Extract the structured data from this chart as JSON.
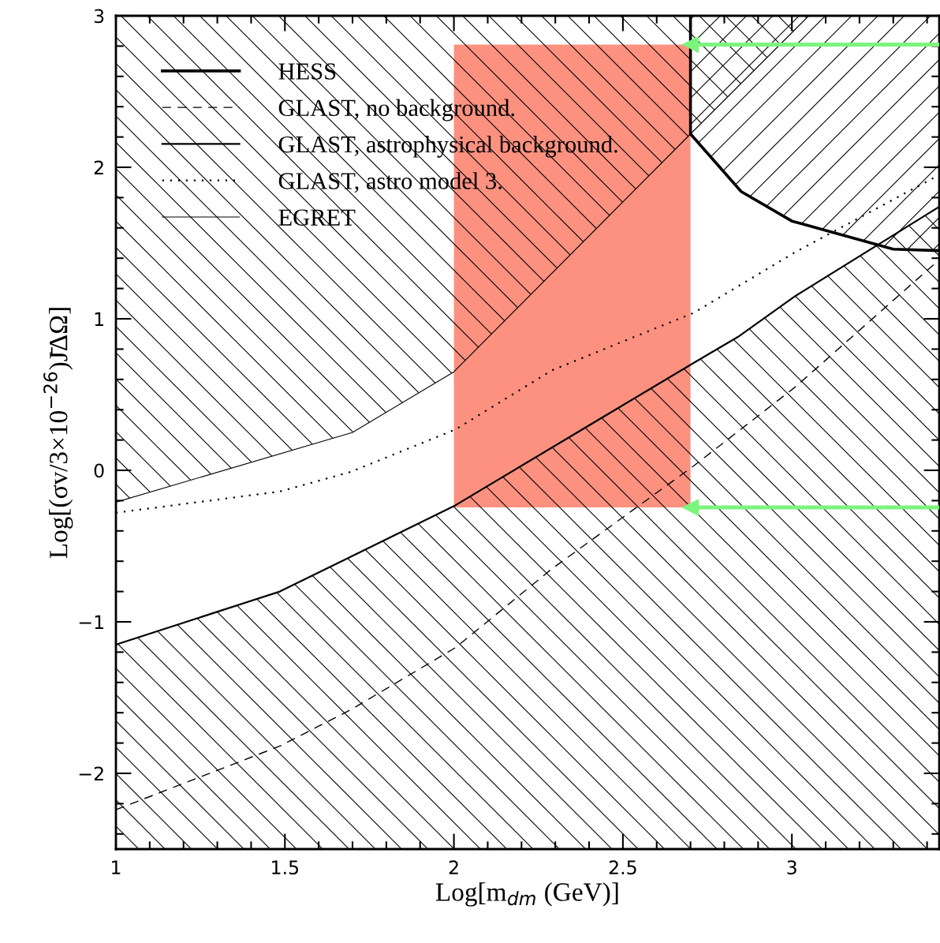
{
  "chart_data": {
    "type": "line",
    "xlabel": "Log[m$_{dm}$ (GeV)]",
    "ylabel": "Log[(σv/3×10$^{−26}$)J̄ΔΩ]",
    "xlim": [
      1,
      3.436
    ],
    "ylim": [
      -2.5,
      3
    ],
    "xticks": [
      1,
      {
        "value": 1.1,
        "label": null
      },
      {
        "value": 1.2,
        "label": null
      },
      {
        "value": 1.3,
        "label": null
      },
      {
        "value": 1.4,
        "label": null
      },
      1.5,
      {
        "value": 1.6,
        "label": null
      },
      {
        "value": 1.7,
        "label": null
      },
      {
        "value": 1.8,
        "label": null
      },
      {
        "value": 1.9,
        "label": null
      },
      2,
      {
        "value": 2.1,
        "label": null
      },
      {
        "value": 2.2,
        "label": null
      },
      {
        "value": 2.3,
        "label": null
      },
      {
        "value": 2.4,
        "label": null
      },
      2.5,
      {
        "value": 2.6,
        "label": null
      },
      {
        "value": 2.7,
        "label": null
      },
      {
        "value": 2.8,
        "label": null
      },
      {
        "value": 2.9,
        "label": null
      },
      3,
      {
        "value": 3.1,
        "label": null
      },
      {
        "value": 3.2,
        "label": null
      },
      {
        "value": 3.3,
        "label": null
      },
      {
        "value": 3.4,
        "label": null
      }
    ],
    "yticks": [
      {
        "value": -2.4,
        "label": null
      },
      {
        "value": -2.2,
        "label": null
      },
      {
        "value": -2,
        "label": "−2"
      },
      {
        "value": -1.8,
        "label": null
      },
      {
        "value": -1.6,
        "label": null
      },
      {
        "value": -1.4,
        "label": null
      },
      {
        "value": -1.2,
        "label": null
      },
      {
        "value": -1,
        "label": "−1"
      },
      {
        "value": -0.8,
        "label": null
      },
      {
        "value": -0.6,
        "label": null
      },
      {
        "value": -0.4,
        "label": null
      },
      {
        "value": -0.2,
        "label": null
      },
      0,
      {
        "value": 0.2,
        "label": null
      },
      {
        "value": 0.4,
        "label": null
      },
      {
        "value": 0.6,
        "label": null
      },
      {
        "value": 0.8,
        "label": null
      },
      1,
      {
        "value": 1.2,
        "label": null
      },
      {
        "value": 1.4,
        "label": null
      },
      {
        "value": 1.6,
        "label": null
      },
      {
        "value": 1.8,
        "label": null
      },
      2,
      {
        "value": 2.2,
        "label": null
      },
      {
        "value": 2.4,
        "label": null
      },
      {
        "value": 2.6,
        "label": null
      },
      {
        "value": 2.8,
        "label": null
      },
      3
    ],
    "grid": false,
    "legend": "top left",
    "series": [
      {
        "name": "HESS",
        "color": "#000000",
        "line_style": "solid",
        "x": [
          2.7,
          2.7,
          2.85,
          3.0,
          3.3,
          3.436
        ],
        "values": [
          3,
          2.22,
          1.84,
          1.645,
          1.46,
          1.45
        ],
        "lower": [
          3,
          2.22,
          1.84,
          1.645,
          1.46,
          1.45
        ],
        "upper": [
          3,
          3,
          3,
          3,
          3,
          3
        ]
      },
      {
        "name": "GLAST, no background.",
        "color": "#000000",
        "line_style": "dashed",
        "x": [
          1,
          1.485,
          1.695,
          2.005,
          2.29,
          2.71,
          3.01,
          3.436
        ],
        "values": [
          -2.24,
          -1.82,
          -1.58,
          -1.17,
          -0.65,
          0.03,
          0.55,
          1.39
        ]
      },
      {
        "name": "GLAST, astrophysical background.",
        "color": "#000000",
        "line_style": "solid",
        "x": [
          1,
          1.485,
          1.695,
          2.005,
          2.71,
          2.84,
          3.01,
          3.436
        ],
        "values": [
          -1.15,
          -0.8,
          -0.57,
          -0.23,
          0.71,
          0.88,
          1.15,
          1.74
        ],
        "lower": [
          -2.5,
          -2.5,
          -2.5,
          -2.5,
          -2.5,
          -2.5,
          -2.5,
          -2.5
        ],
        "upper": [
          -1.15,
          -0.8,
          -0.57,
          -0.23,
          0.71,
          0.88,
          1.15,
          1.74
        ]
      },
      {
        "name": "GLAST, astro model 3.",
        "color": "#000000",
        "line_style": "dotted",
        "x": [
          1,
          1.485,
          1.695,
          2.005,
          2.29,
          2.71,
          3.01,
          3.436
        ],
        "values": [
          -0.28,
          -0.14,
          -0.01,
          0.27,
          0.66,
          1.04,
          1.44,
          1.95
        ]
      },
      {
        "name": "EGRET",
        "color": "#000000",
        "line_style": "solid",
        "x": [
          1,
          1.7,
          2.0,
          2.7,
          3.05
        ],
        "values": [
          -0.21,
          0.25,
          0.65,
          2.22,
          3.0
        ],
        "lower": [
          -0.21,
          0.25,
          0.65,
          2.22,
          3.0
        ],
        "upper": [
          3,
          3,
          3,
          3,
          3
        ]
      },
      {
        "color": "#fd9180",
        "x": [
          2.0,
          2.7
        ],
        "values": [
          null,
          null
        ],
        "lower": [
          -0.245,
          -0.245
        ],
        "upper": [
          2.81,
          2.81
        ]
      },
      {
        "color": "#7cf57c",
        "line_style": "solid",
        "marker": "triangle",
        "x": [
          2.7,
          3.436
        ],
        "values": [
          2.81,
          2.81
        ]
      },
      {
        "color": "#7cf57c",
        "line_style": "solid",
        "marker": "triangle",
        "x": [
          2.7,
          3.436
        ],
        "values": [
          -0.245,
          -0.245
        ]
      }
    ]
  }
}
